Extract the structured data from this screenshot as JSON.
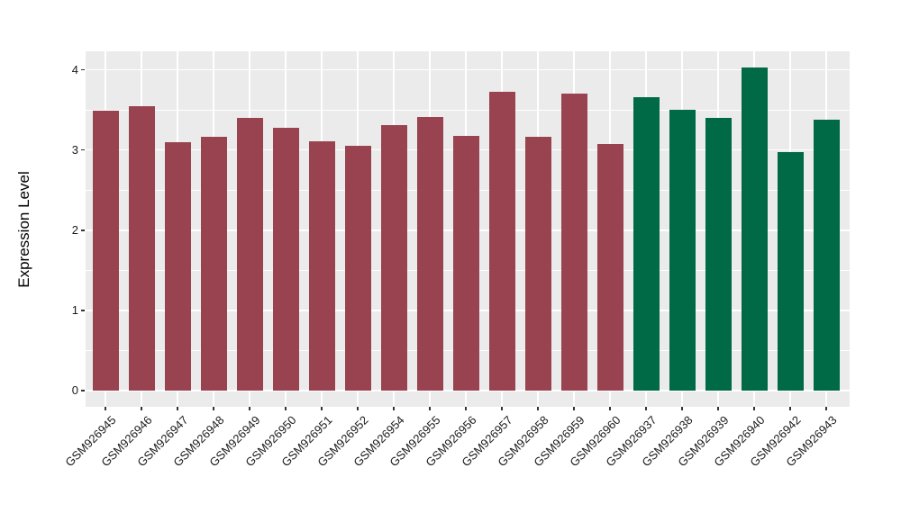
{
  "figure": {
    "background_color": "#ffffff",
    "panel_background_color": "#ebebeb",
    "grid_color": "#ffffff",
    "axis_text_color": "#1a1a1a",
    "tick_mark_color": "#333333"
  },
  "chart_data": {
    "type": "bar",
    "title": "",
    "xlabel": "",
    "ylabel": "Expression Level",
    "ylim": [
      0,
      4.23
    ],
    "yticks": [
      0,
      1,
      2,
      3,
      4
    ],
    "ytick_labels": [
      "0",
      "1",
      "2",
      "3",
      "4"
    ],
    "grid": "on",
    "legend": "none",
    "x_label_rotation_deg": 45,
    "categories": [
      "GSM926945",
      "GSM926946",
      "GSM926947",
      "GSM926948",
      "GSM926949",
      "GSM926950",
      "GSM926951",
      "GSM926952",
      "GSM926954",
      "GSM926955",
      "GSM926956",
      "GSM926957",
      "GSM926958",
      "GSM926959",
      "GSM926960",
      "GSM926937",
      "GSM926938",
      "GSM926939",
      "GSM926940",
      "GSM926942",
      "GSM926943"
    ],
    "values": [
      3.49,
      3.55,
      3.1,
      3.16,
      3.4,
      3.28,
      3.11,
      3.05,
      3.31,
      3.41,
      3.18,
      3.73,
      3.17,
      3.7,
      3.08,
      3.66,
      3.5,
      3.4,
      4.03,
      2.97,
      3.38
    ],
    "groups": [
      "group1",
      "group1",
      "group1",
      "group1",
      "group1",
      "group1",
      "group1",
      "group1",
      "group1",
      "group1",
      "group1",
      "group1",
      "group1",
      "group1",
      "group1",
      "group2",
      "group2",
      "group2",
      "group2",
      "group2",
      "group2"
    ],
    "group_colors": {
      "group1": "#9a4350",
      "group2": "#006945"
    }
  }
}
